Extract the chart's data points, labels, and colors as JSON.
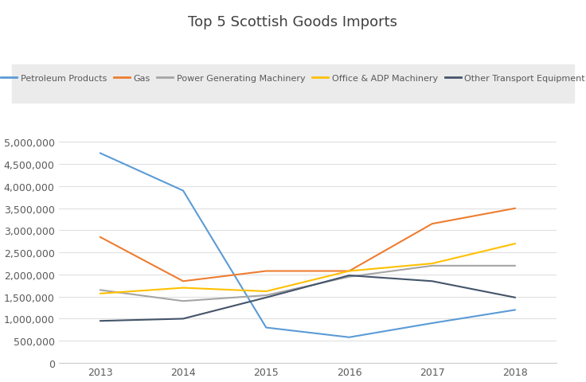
{
  "title": "Top 5 Scottish Goods Imports",
  "years": [
    2013,
    2014,
    2015,
    2016,
    2017,
    2018
  ],
  "series": [
    {
      "label": "Petroleum Products",
      "color": "#5B9BD5",
      "values": [
        4750000,
        3900000,
        800000,
        580000,
        900000,
        1200000
      ]
    },
    {
      "label": "Gas",
      "color": "#ED7D31",
      "values": [
        2850000,
        1850000,
        2080000,
        2080000,
        3150000,
        3500000
      ]
    },
    {
      "label": "Power Generating Machinery",
      "color": "#A5A5A5",
      "values": [
        1650000,
        1400000,
        1530000,
        1950000,
        2200000,
        2200000
      ]
    },
    {
      "label": "Office & ADP Machinery",
      "color": "#FFC000",
      "values": [
        1570000,
        1700000,
        1620000,
        2080000,
        2250000,
        2700000
      ]
    },
    {
      "label": "Other Transport Equipment",
      "color": "#44546A",
      "values": [
        950000,
        1000000,
        1480000,
        1980000,
        1850000,
        1480000
      ]
    }
  ],
  "ylim": [
    0,
    5200000
  ],
  "yticks": [
    0,
    500000,
    1000000,
    1500000,
    2000000,
    2500000,
    3000000,
    3500000,
    4000000,
    4500000,
    5000000
  ],
  "background_color": "#ffffff",
  "legend_background": "#EBEBEB",
  "title_fontsize": 13,
  "axis_fontsize": 9,
  "tick_fontsize": 9,
  "legend_fontsize": 8
}
